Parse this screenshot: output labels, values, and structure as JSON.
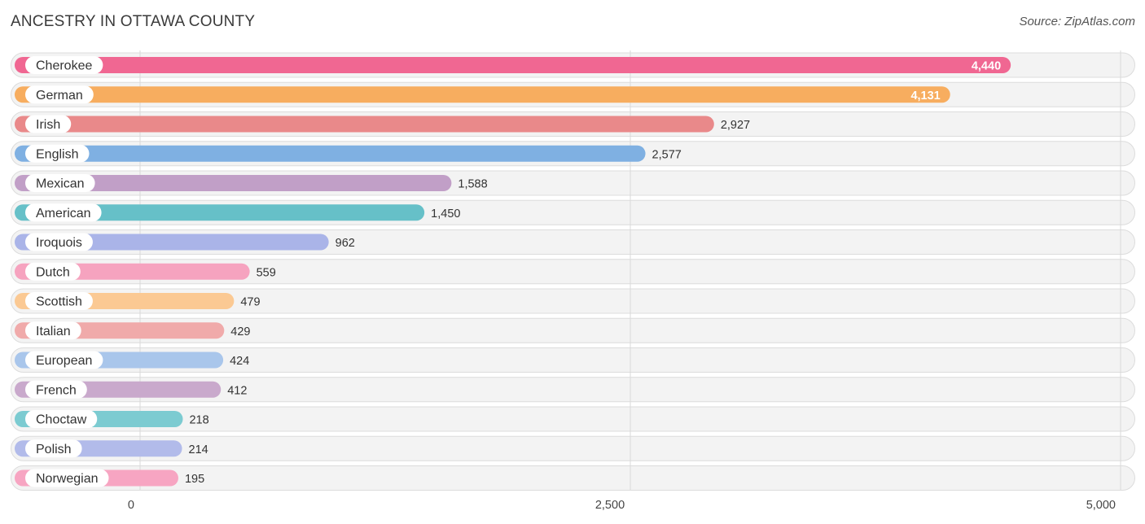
{
  "header": {
    "title": "ANCESTRY IN OTTAWA COUNTY",
    "source": "Source: ZipAtlas.com"
  },
  "chart_data": {
    "type": "bar",
    "orientation": "horizontal",
    "title": "ANCESTRY IN OTTAWA COUNTY",
    "xlabel": "",
    "ylabel": "",
    "xlim": [
      0,
      5000
    ],
    "ticks": [
      0,
      2500,
      5000
    ],
    "tick_labels": [
      "0",
      "2,500",
      "5,000"
    ],
    "grid": true,
    "categories": [
      "Cherokee",
      "German",
      "Irish",
      "English",
      "Mexican",
      "American",
      "Iroquois",
      "Dutch",
      "Scottish",
      "Italian",
      "European",
      "French",
      "Choctaw",
      "Polish",
      "Norwegian"
    ],
    "values": [
      4440,
      4131,
      2927,
      2577,
      1588,
      1450,
      962,
      559,
      479,
      429,
      424,
      412,
      218,
      214,
      195
    ],
    "value_labels": [
      "4,440",
      "4,131",
      "2,927",
      "2,577",
      "1,588",
      "1,450",
      "962",
      "559",
      "479",
      "429",
      "424",
      "412",
      "218",
      "214",
      "195"
    ],
    "colors": [
      "#f06792",
      "#f7ad5f",
      "#e9898a",
      "#7fb0e2",
      "#c19fc7",
      "#66c0c8",
      "#aab4e8",
      "#f6a3bf",
      "#fbc993",
      "#f0aaaa",
      "#a9c6eb",
      "#c9a9cc",
      "#7ccbd1",
      "#b2bbea",
      "#f7a5c2"
    ]
  }
}
